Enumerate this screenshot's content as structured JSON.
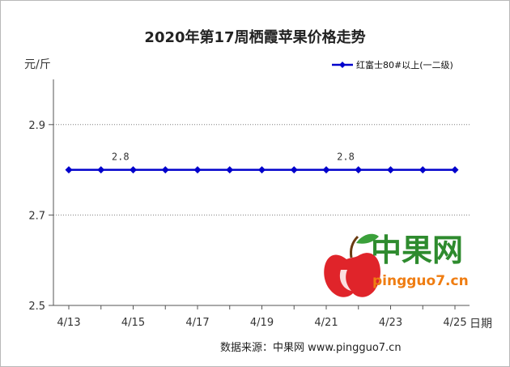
{
  "chart_data": {
    "type": "line",
    "title": "2020年第17周栖霞苹果价格走势",
    "ylabel": "元/斤",
    "xlabel": "日期",
    "ylim": [
      2.5,
      3.0
    ],
    "yticks": [
      "2.9",
      "2.7",
      "2.5"
    ],
    "categories": [
      "4/13",
      "4/14",
      "4/15",
      "4/16",
      "4/17",
      "4/18",
      "4/19",
      "4/20",
      "4/21",
      "4/22",
      "4/23",
      "4/24",
      "4/25"
    ],
    "xtick_labels": [
      "4/13",
      "4/15",
      "4/17",
      "4/19",
      "4/21",
      "4/23",
      "4/25"
    ],
    "series": [
      {
        "name": "红富士80#以上(一二级)",
        "values": [
          2.8,
          2.8,
          2.8,
          2.8,
          2.8,
          2.8,
          2.8,
          2.8,
          2.8,
          2.8,
          2.8,
          2.8,
          2.8
        ],
        "color": "#0000cc"
      }
    ],
    "data_labels": [
      {
        "category": "4/14",
        "value": "2.8"
      },
      {
        "category": "4/21",
        "value": "2.8"
      }
    ],
    "legend_position": "top-right",
    "grid": "horizontal-dashed"
  },
  "watermark": {
    "brand": "中果网",
    "url": "pingguo7.cn",
    "brand_color": "#2e8b2e",
    "url_color": "#ef7d12"
  },
  "source_text": "数据来源：中果网 www.pingguo7.cn"
}
